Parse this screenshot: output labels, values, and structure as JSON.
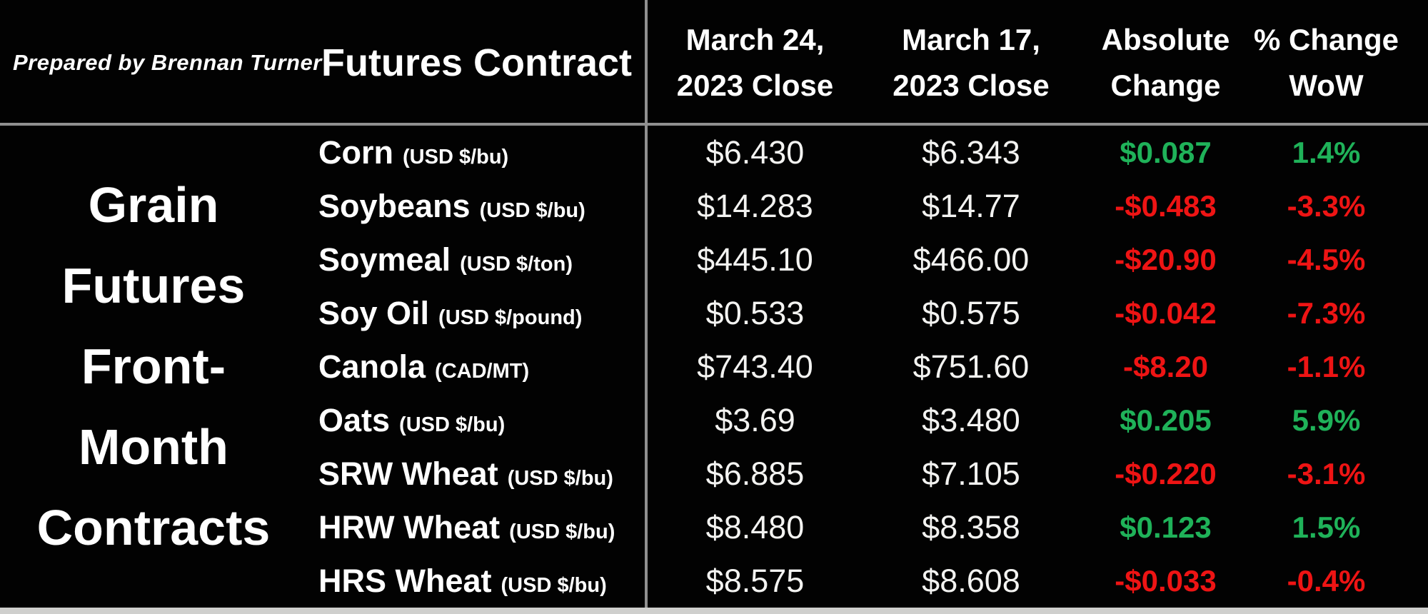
{
  "palette": {
    "background": "#020202",
    "text": "#ffffff",
    "positive_green": "#1fb259",
    "negative_red": "#ee1414",
    "divider_gray": "#8f8f8f",
    "bottom_bar_gray": "#cfcfcd"
  },
  "header": {
    "prepared_by": "Prepared by Brennan Turner",
    "contract_column_label": "Futures Contract",
    "col_mar24_line1": "March 24,",
    "col_mar24_line2": "2023 Close",
    "col_mar17_line1": "March 17,",
    "col_mar17_line2": "2023 Close",
    "col_abs_line1": "Absolute",
    "col_abs_line2": "Change",
    "col_pct_line1": "% Change",
    "col_pct_line2": "WoW"
  },
  "title": {
    "full": "Grain Futures Front-Month Contracts",
    "line1": "Grain",
    "line2": "Futures",
    "line3": "Front-",
    "line4": "Month",
    "line5": "Contracts"
  },
  "rows": [
    {
      "contract": "Corn",
      "unit": "(USD $/bu)",
      "close_mar24": "$6.430",
      "close_mar17": "$6.343",
      "abs_change": "$0.087",
      "pct_change": "1.4%",
      "change_color": "#1fb259"
    },
    {
      "contract": "Soybeans",
      "unit": "(USD $/bu)",
      "close_mar24": "$14.283",
      "close_mar17": "$14.77",
      "abs_change": "-$0.483",
      "pct_change": "-3.3%",
      "change_color": "#ee1414"
    },
    {
      "contract": "Soymeal",
      "unit": "(USD $/ton)",
      "close_mar24": "$445.10",
      "close_mar17": "$466.00",
      "abs_change": "-$20.90",
      "pct_change": "-4.5%",
      "change_color": "#ee1414"
    },
    {
      "contract": "Soy Oil",
      "unit": "(USD $/pound)",
      "close_mar24": "$0.533",
      "close_mar17": "$0.575",
      "abs_change": "-$0.042",
      "pct_change": "-7.3%",
      "change_color": "#ee1414"
    },
    {
      "contract": "Canola",
      "unit": "(CAD/MT)",
      "close_mar24": "$743.40",
      "close_mar17": "$751.60",
      "abs_change": "-$8.20",
      "pct_change": "-1.1%",
      "change_color": "#ee1414"
    },
    {
      "contract": "Oats",
      "unit": "(USD $/bu)",
      "close_mar24": "$3.69",
      "close_mar17": "$3.480",
      "abs_change": "$0.205",
      "pct_change": "5.9%",
      "change_color": "#1fb259"
    },
    {
      "contract": "SRW Wheat",
      "unit": "(USD $/bu)",
      "close_mar24": "$6.885",
      "close_mar17": "$7.105",
      "abs_change": "-$0.220",
      "pct_change": "-3.1%",
      "change_color": "#ee1414"
    },
    {
      "contract": "HRW Wheat",
      "unit": "(USD $/bu)",
      "close_mar24": "$8.480",
      "close_mar17": "$8.358",
      "abs_change": "$0.123",
      "pct_change": "1.5%",
      "change_color": "#1fb259"
    },
    {
      "contract": "HRS Wheat",
      "unit": "(USD $/bu)",
      "close_mar24": "$8.575",
      "close_mar17": "$8.608",
      "abs_change": "-$0.033",
      "pct_change": "-0.4%",
      "change_color": "#ee1414"
    }
  ],
  "chart_data": {
    "type": "table",
    "title": "Grain Futures Front-Month Contracts",
    "prepared_by": "Prepared by Brennan Turner",
    "columns": [
      "Futures Contract",
      "March 24, 2023 Close",
      "March 17, 2023 Close",
      "Absolute Change",
      "% Change WoW"
    ],
    "rows": [
      {
        "contract": "Corn",
        "unit": "USD $/bu",
        "close_2023_03_24": 6.43,
        "close_2023_03_17": 6.343,
        "absolute_change": 0.087,
        "pct_change_wow": 1.4
      },
      {
        "contract": "Soybeans",
        "unit": "USD $/bu",
        "close_2023_03_24": 14.283,
        "close_2023_03_17": 14.77,
        "absolute_change": -0.483,
        "pct_change_wow": -3.3
      },
      {
        "contract": "Soymeal",
        "unit": "USD $/ton",
        "close_2023_03_24": 445.1,
        "close_2023_03_17": 466.0,
        "absolute_change": -20.9,
        "pct_change_wow": -4.5
      },
      {
        "contract": "Soy Oil",
        "unit": "USD $/pound",
        "close_2023_03_24": 0.533,
        "close_2023_03_17": 0.575,
        "absolute_change": -0.042,
        "pct_change_wow": -7.3
      },
      {
        "contract": "Canola",
        "unit": "CAD/MT",
        "close_2023_03_24": 743.4,
        "close_2023_03_17": 751.6,
        "absolute_change": -8.2,
        "pct_change_wow": -1.1
      },
      {
        "contract": "Oats",
        "unit": "USD $/bu",
        "close_2023_03_24": 3.69,
        "close_2023_03_17": 3.48,
        "absolute_change": 0.205,
        "pct_change_wow": 5.9
      },
      {
        "contract": "SRW Wheat",
        "unit": "USD $/bu",
        "close_2023_03_24": 6.885,
        "close_2023_03_17": 7.105,
        "absolute_change": -0.22,
        "pct_change_wow": -3.1
      },
      {
        "contract": "HRW Wheat",
        "unit": "USD $/bu",
        "close_2023_03_24": 8.48,
        "close_2023_03_17": 8.358,
        "absolute_change": 0.123,
        "pct_change_wow": 1.5
      },
      {
        "contract": "HRS Wheat",
        "unit": "USD $/bu",
        "close_2023_03_24": 8.575,
        "close_2023_03_17": 8.608,
        "absolute_change": -0.033,
        "pct_change_wow": -0.4
      }
    ],
    "legend_position": "none",
    "grid": "partial (header underline + center vertical divider + bottom bar)"
  }
}
